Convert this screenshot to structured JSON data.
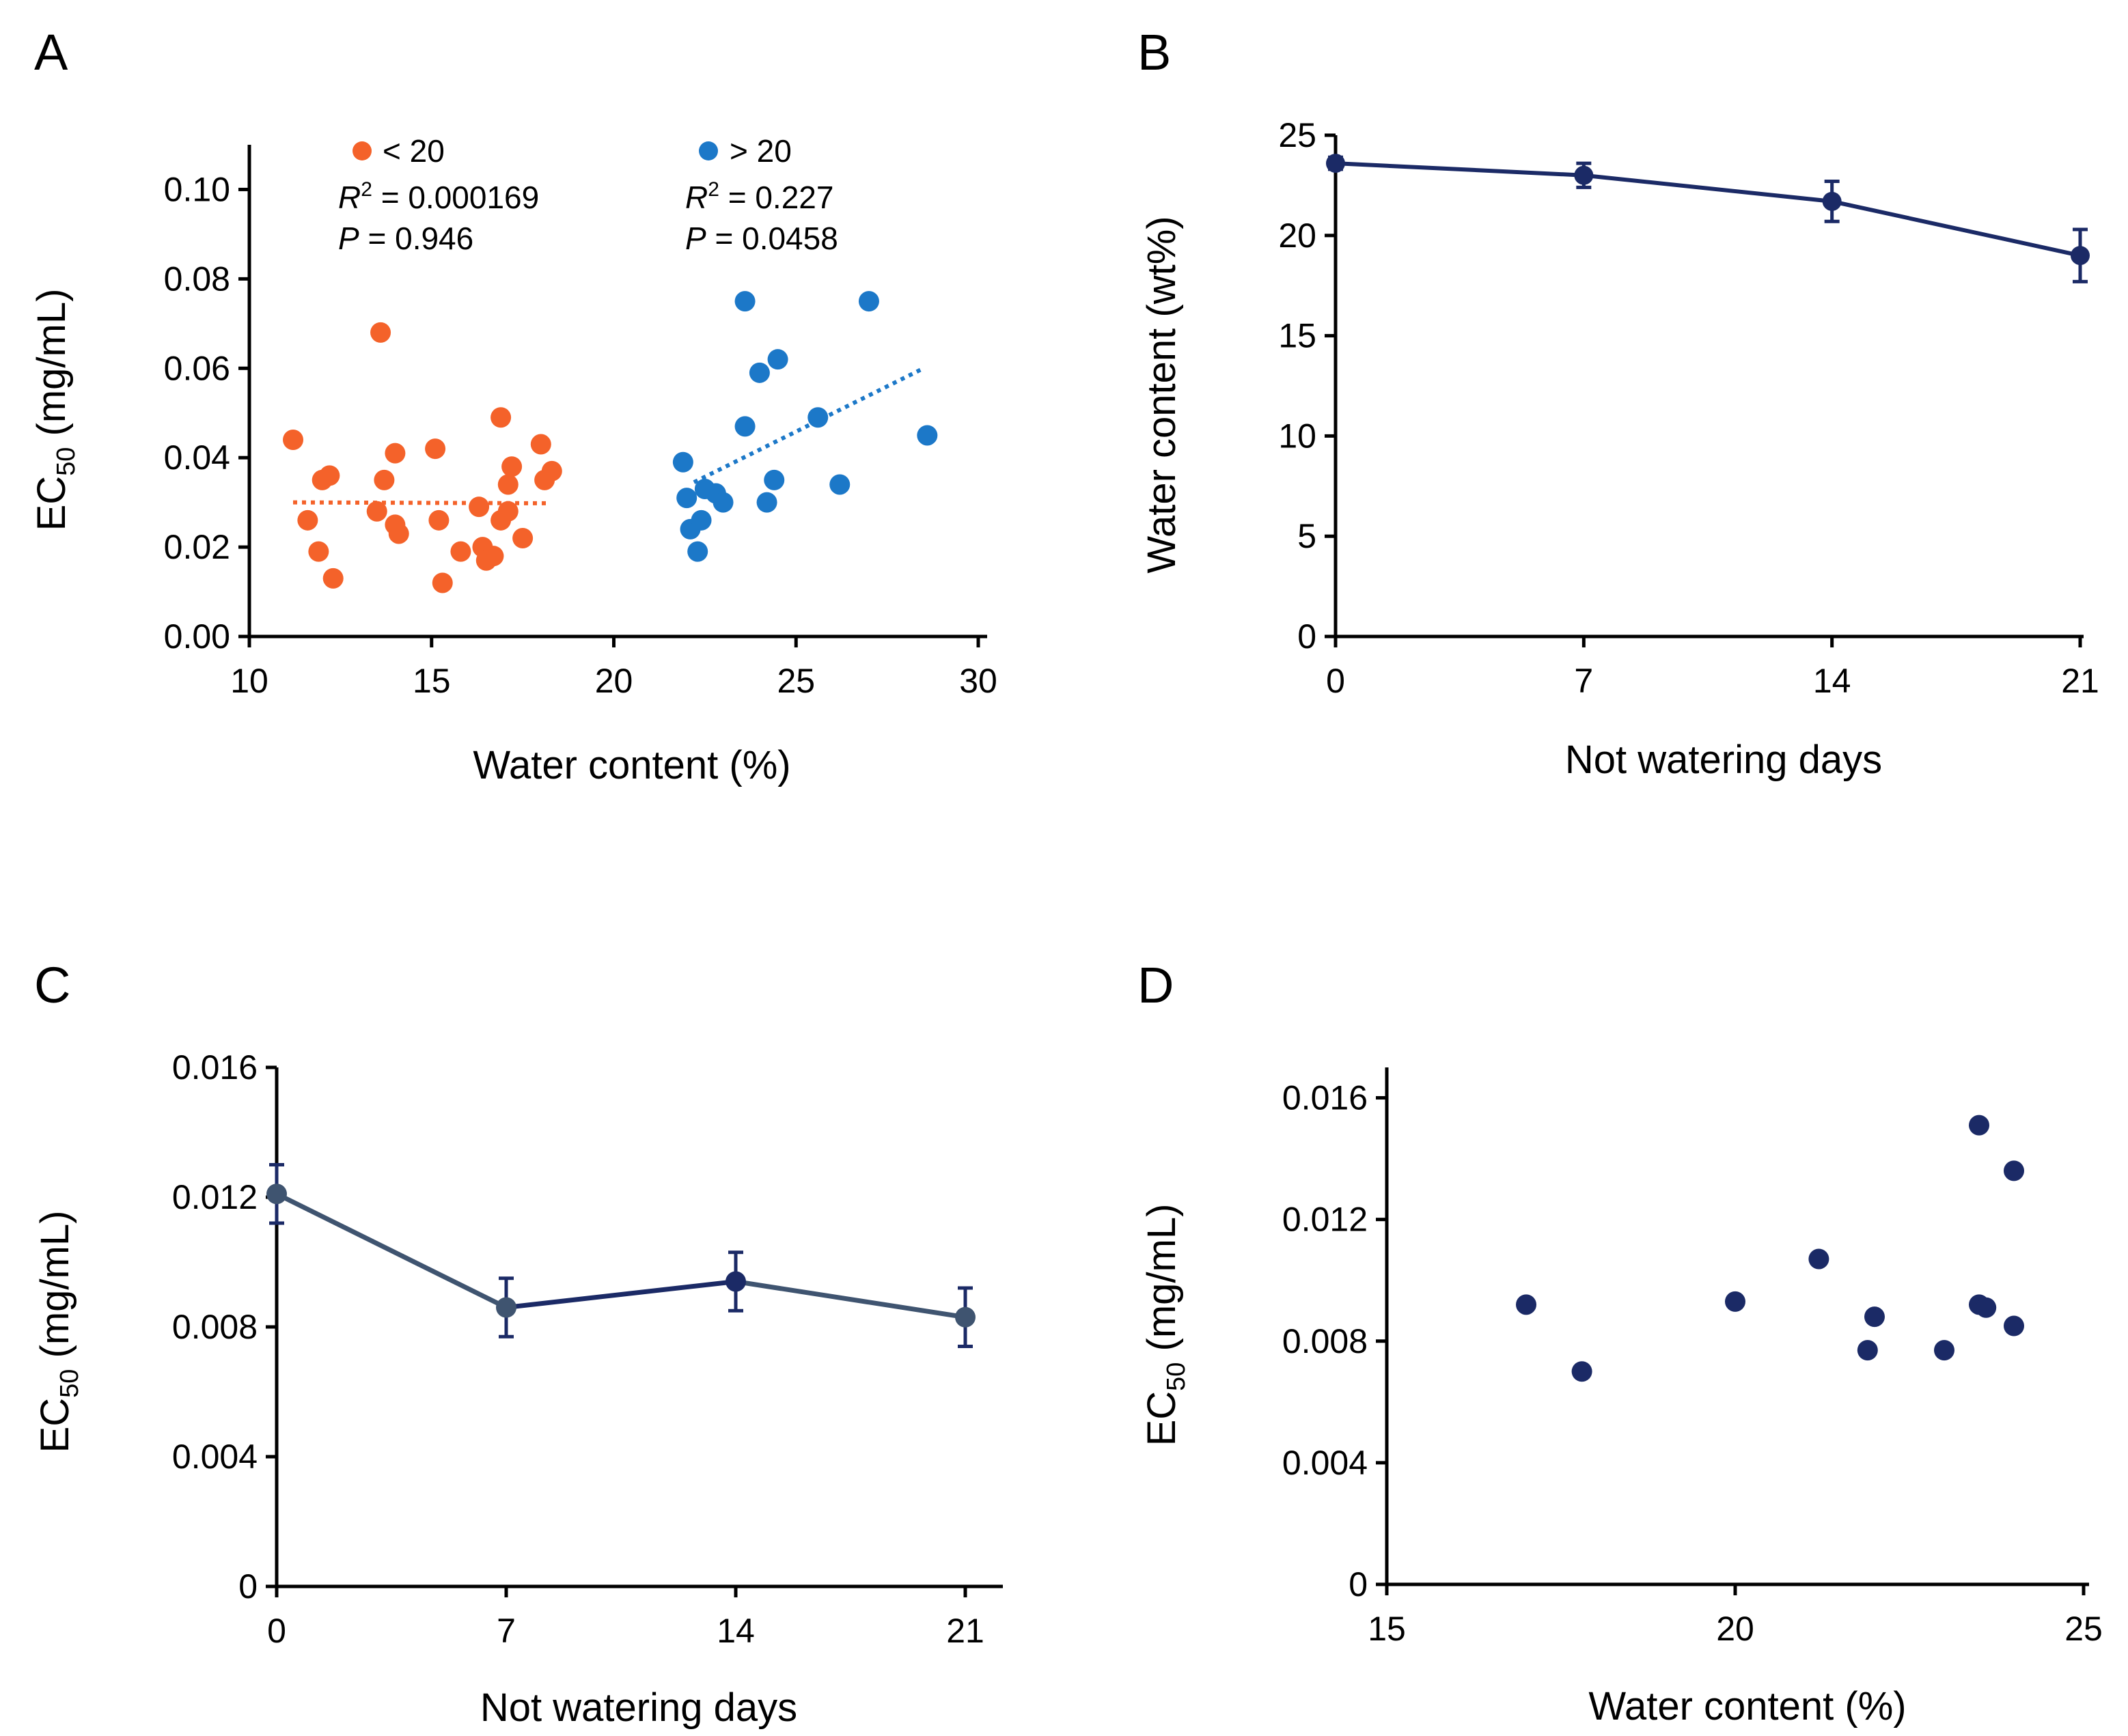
{
  "colors": {
    "orange": "#F4622A",
    "blue": "#1C78C8",
    "navy": "#1B2A66",
    "slate": "#3F5470"
  },
  "chart_data": [
    {
      "panel": "A",
      "type": "scatter",
      "xlabel": "Water content (%)",
      "ylabel_main": "EC",
      "ylabel_sub": "50",
      "ylabel_tail": " (mg/mL)",
      "xlim": [
        10,
        30
      ],
      "ylim": [
        0,
        0.11
      ],
      "xticks": [
        10,
        15,
        20,
        25,
        30
      ],
      "yticks": [
        0,
        0.02,
        0.04,
        0.06,
        0.08,
        0.1
      ],
      "ytick_labels": [
        "0.00",
        "0.02",
        "0.04",
        "0.06",
        "0.08",
        "0.10"
      ],
      "series": [
        {
          "name": "< 20",
          "color": "#F4622A",
          "r2_label": "R",
          "r2_exp": "2",
          "r2_value": " = 0.000169",
          "p_label": "P",
          "p_value": " = 0.946",
          "trend": {
            "x": [
              11.2,
              18.2
            ],
            "y": [
              0.03,
              0.0298
            ]
          },
          "points": [
            [
              11.2,
              0.044
            ],
            [
              11.6,
              0.026
            ],
            [
              11.9,
              0.019
            ],
            [
              12.0,
              0.035
            ],
            [
              12.2,
              0.036
            ],
            [
              12.3,
              0.013
            ],
            [
              13.5,
              0.028
            ],
            [
              13.6,
              0.068
            ],
            [
              13.7,
              0.035
            ],
            [
              14.0,
              0.041
            ],
            [
              14.0,
              0.025
            ],
            [
              14.1,
              0.023
            ],
            [
              15.1,
              0.042
            ],
            [
              15.2,
              0.026
            ],
            [
              15.3,
              0.012
            ],
            [
              15.8,
              0.019
            ],
            [
              16.3,
              0.029
            ],
            [
              16.4,
              0.02
            ],
            [
              16.5,
              0.017
            ],
            [
              16.7,
              0.018
            ],
            [
              16.9,
              0.049
            ],
            [
              16.9,
              0.026
            ],
            [
              17.1,
              0.028
            ],
            [
              17.1,
              0.034
            ],
            [
              17.2,
              0.038
            ],
            [
              17.5,
              0.022
            ],
            [
              18.0,
              0.043
            ],
            [
              18.1,
              0.035
            ],
            [
              18.3,
              0.037
            ]
          ]
        },
        {
          "name": "> 20",
          "color": "#1C78C8",
          "r2_label": "R",
          "r2_exp": "2",
          "r2_value": " = 0.227",
          "p_label": "P",
          "p_value": " = 0.0458",
          "trend": {
            "x": [
              22.2,
              28.5
            ],
            "y": [
              0.0345,
              0.06
            ]
          },
          "points": [
            [
              21.9,
              0.039
            ],
            [
              22.0,
              0.031
            ],
            [
              22.1,
              0.024
            ],
            [
              22.3,
              0.019
            ],
            [
              22.4,
              0.026
            ],
            [
              22.5,
              0.033
            ],
            [
              22.8,
              0.032
            ],
            [
              23.0,
              0.03
            ],
            [
              23.6,
              0.075
            ],
            [
              23.6,
              0.047
            ],
            [
              24.0,
              0.059
            ],
            [
              24.2,
              0.03
            ],
            [
              24.4,
              0.035
            ],
            [
              24.5,
              0.062
            ],
            [
              25.6,
              0.049
            ],
            [
              26.2,
              0.034
            ],
            [
              27.0,
              0.075
            ],
            [
              28.6,
              0.045
            ]
          ]
        }
      ]
    },
    {
      "panel": "B",
      "type": "line",
      "xlabel": "Not watering days",
      "ylabel": "Water content (wt%)",
      "x": [
        0,
        7,
        14,
        21
      ],
      "xticks": [
        0,
        7,
        14,
        21
      ],
      "yticks": [
        0,
        5,
        10,
        15,
        20,
        25
      ],
      "ylim": [
        0,
        25
      ],
      "series": [
        {
          "name": "Water content",
          "color": "#1B2A66",
          "values": [
            23.6,
            23.0,
            21.7,
            19.0
          ],
          "errors": [
            0.3,
            0.6,
            1.0,
            1.3
          ]
        }
      ]
    },
    {
      "panel": "C",
      "type": "line",
      "xlabel": "Not watering days",
      "ylabel_main": "EC",
      "ylabel_sub": "50",
      "ylabel_tail": " (mg/mL)",
      "x": [
        0,
        7,
        14,
        21
      ],
      "xticks": [
        0,
        7,
        14,
        21
      ],
      "yticks": [
        0,
        0.004,
        0.008,
        0.012,
        0.016
      ],
      "ytick_labels": [
        "0",
        "0.004",
        "0.008",
        "0.012",
        "0.016"
      ],
      "ylim": [
        0,
        0.016
      ],
      "series": [
        {
          "name": "EC50",
          "color": "#1B2A66",
          "values": [
            0.0121,
            0.0086,
            0.0094,
            0.0083
          ],
          "errors": [
            0.0009,
            0.0009,
            0.0009,
            0.0009
          ]
        }
      ]
    },
    {
      "panel": "D",
      "type": "scatter",
      "xlabel": "Water content (%)",
      "ylabel_main": "EC",
      "ylabel_sub": "50",
      "ylabel_tail": " (mg/mL)",
      "xlim": [
        15,
        25
      ],
      "ylim": [
        0,
        0.017
      ],
      "xticks": [
        15,
        20,
        25
      ],
      "yticks": [
        0,
        0.004,
        0.008,
        0.012,
        0.016
      ],
      "ytick_labels": [
        "0",
        "0.004",
        "0.008",
        "0.012",
        "0.016"
      ],
      "series": [
        {
          "name": "EC50",
          "color": "#1B2A66",
          "points": [
            [
              17.0,
              0.0092
            ],
            [
              17.8,
              0.007
            ],
            [
              20.0,
              0.0093
            ],
            [
              21.2,
              0.0107
            ],
            [
              21.9,
              0.0077
            ],
            [
              22.0,
              0.0088
            ],
            [
              23.0,
              0.0077
            ],
            [
              23.5,
              0.0151
            ],
            [
              23.5,
              0.0092
            ],
            [
              23.6,
              0.0091
            ],
            [
              24.0,
              0.0136
            ],
            [
              24.0,
              0.0085
            ]
          ]
        }
      ]
    }
  ]
}
